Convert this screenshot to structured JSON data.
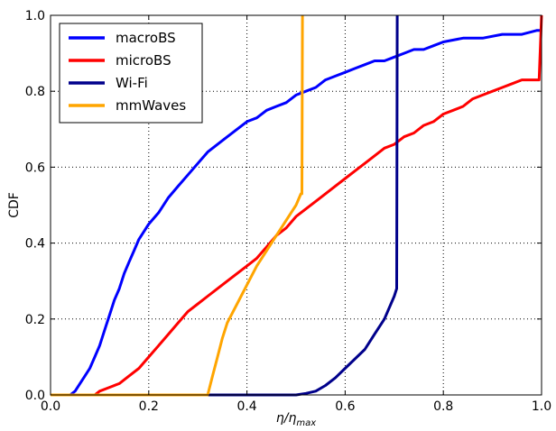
{
  "chart_data": {
    "type": "line",
    "xlabel": "η/η_max",
    "ylabel": "CDF",
    "xlim": [
      0.0,
      1.0
    ],
    "ylim": [
      0.0,
      1.0
    ],
    "x_ticks": [
      "0.0",
      "0.2",
      "0.4",
      "0.6",
      "0.8",
      "1.0"
    ],
    "y_ticks": [
      "0.0",
      "0.2",
      "0.4",
      "0.6",
      "0.8",
      "1.0"
    ],
    "grid": true,
    "legend_position": "top-left",
    "series": [
      {
        "name": "macroBS",
        "color": "#0000ff",
        "points": [
          [
            0.0,
            0.0
          ],
          [
            0.04,
            0.0
          ],
          [
            0.05,
            0.01
          ],
          [
            0.06,
            0.03
          ],
          [
            0.07,
            0.05
          ],
          [
            0.08,
            0.07
          ],
          [
            0.09,
            0.1
          ],
          [
            0.1,
            0.13
          ],
          [
            0.11,
            0.17
          ],
          [
            0.12,
            0.21
          ],
          [
            0.13,
            0.25
          ],
          [
            0.14,
            0.28
          ],
          [
            0.15,
            0.32
          ],
          [
            0.16,
            0.35
          ],
          [
            0.17,
            0.38
          ],
          [
            0.18,
            0.41
          ],
          [
            0.2,
            0.45
          ],
          [
            0.22,
            0.48
          ],
          [
            0.24,
            0.52
          ],
          [
            0.26,
            0.55
          ],
          [
            0.28,
            0.58
          ],
          [
            0.3,
            0.61
          ],
          [
            0.32,
            0.64
          ],
          [
            0.34,
            0.66
          ],
          [
            0.36,
            0.68
          ],
          [
            0.38,
            0.7
          ],
          [
            0.4,
            0.72
          ],
          [
            0.42,
            0.73
          ],
          [
            0.44,
            0.75
          ],
          [
            0.46,
            0.76
          ],
          [
            0.48,
            0.77
          ],
          [
            0.5,
            0.79
          ],
          [
            0.52,
            0.8
          ],
          [
            0.54,
            0.81
          ],
          [
            0.56,
            0.83
          ],
          [
            0.58,
            0.84
          ],
          [
            0.6,
            0.85
          ],
          [
            0.62,
            0.86
          ],
          [
            0.64,
            0.87
          ],
          [
            0.66,
            0.88
          ],
          [
            0.68,
            0.88
          ],
          [
            0.7,
            0.89
          ],
          [
            0.72,
            0.9
          ],
          [
            0.74,
            0.91
          ],
          [
            0.76,
            0.91
          ],
          [
            0.78,
            0.92
          ],
          [
            0.8,
            0.93
          ],
          [
            0.84,
            0.94
          ],
          [
            0.88,
            0.94
          ],
          [
            0.92,
            0.95
          ],
          [
            0.96,
            0.95
          ],
          [
            0.99,
            0.96
          ],
          [
            1.0,
            0.96
          ]
        ]
      },
      {
        "name": "microBS",
        "color": "#ff0000",
        "points": [
          [
            0.0,
            0.0
          ],
          [
            0.09,
            0.0
          ],
          [
            0.1,
            0.01
          ],
          [
            0.12,
            0.02
          ],
          [
            0.14,
            0.03
          ],
          [
            0.16,
            0.05
          ],
          [
            0.18,
            0.07
          ],
          [
            0.2,
            0.1
          ],
          [
            0.22,
            0.13
          ],
          [
            0.24,
            0.16
          ],
          [
            0.26,
            0.19
          ],
          [
            0.28,
            0.22
          ],
          [
            0.3,
            0.24
          ],
          [
            0.32,
            0.26
          ],
          [
            0.34,
            0.28
          ],
          [
            0.36,
            0.3
          ],
          [
            0.38,
            0.32
          ],
          [
            0.4,
            0.34
          ],
          [
            0.42,
            0.36
          ],
          [
            0.44,
            0.39
          ],
          [
            0.46,
            0.42
          ],
          [
            0.48,
            0.44
          ],
          [
            0.5,
            0.47
          ],
          [
            0.52,
            0.49
          ],
          [
            0.54,
            0.51
          ],
          [
            0.56,
            0.53
          ],
          [
            0.58,
            0.55
          ],
          [
            0.6,
            0.57
          ],
          [
            0.62,
            0.59
          ],
          [
            0.64,
            0.61
          ],
          [
            0.66,
            0.63
          ],
          [
            0.68,
            0.65
          ],
          [
            0.7,
            0.66
          ],
          [
            0.72,
            0.68
          ],
          [
            0.74,
            0.69
          ],
          [
            0.76,
            0.71
          ],
          [
            0.78,
            0.72
          ],
          [
            0.8,
            0.74
          ],
          [
            0.82,
            0.75
          ],
          [
            0.84,
            0.76
          ],
          [
            0.86,
            0.78
          ],
          [
            0.88,
            0.79
          ],
          [
            0.9,
            0.8
          ],
          [
            0.92,
            0.81
          ],
          [
            0.94,
            0.82
          ],
          [
            0.96,
            0.83
          ],
          [
            0.98,
            0.83
          ],
          [
            0.995,
            0.83
          ],
          [
            1.0,
            1.0
          ]
        ]
      },
      {
        "name": "Wi-Fi",
        "color": "#00008b",
        "points": [
          [
            0.0,
            0.0
          ],
          [
            0.5,
            0.0
          ],
          [
            0.52,
            0.004
          ],
          [
            0.54,
            0.01
          ],
          [
            0.56,
            0.025
          ],
          [
            0.58,
            0.045
          ],
          [
            0.6,
            0.07
          ],
          [
            0.62,
            0.095
          ],
          [
            0.64,
            0.12
          ],
          [
            0.66,
            0.16
          ],
          [
            0.68,
            0.2
          ],
          [
            0.7,
            0.26
          ],
          [
            0.705,
            0.28
          ],
          [
            0.706,
            1.0
          ]
        ]
      },
      {
        "name": "mmWaves",
        "color": "#ffa500",
        "points": [
          [
            0.0,
            0.0
          ],
          [
            0.32,
            0.0
          ],
          [
            0.33,
            0.05
          ],
          [
            0.34,
            0.1
          ],
          [
            0.35,
            0.15
          ],
          [
            0.36,
            0.19
          ],
          [
            0.38,
            0.24
          ],
          [
            0.4,
            0.29
          ],
          [
            0.42,
            0.34
          ],
          [
            0.44,
            0.38
          ],
          [
            0.46,
            0.42
          ],
          [
            0.48,
            0.46
          ],
          [
            0.5,
            0.5
          ],
          [
            0.51,
            0.53
          ],
          [
            0.512,
            0.53
          ],
          [
            0.513,
            1.0
          ]
        ]
      }
    ]
  }
}
